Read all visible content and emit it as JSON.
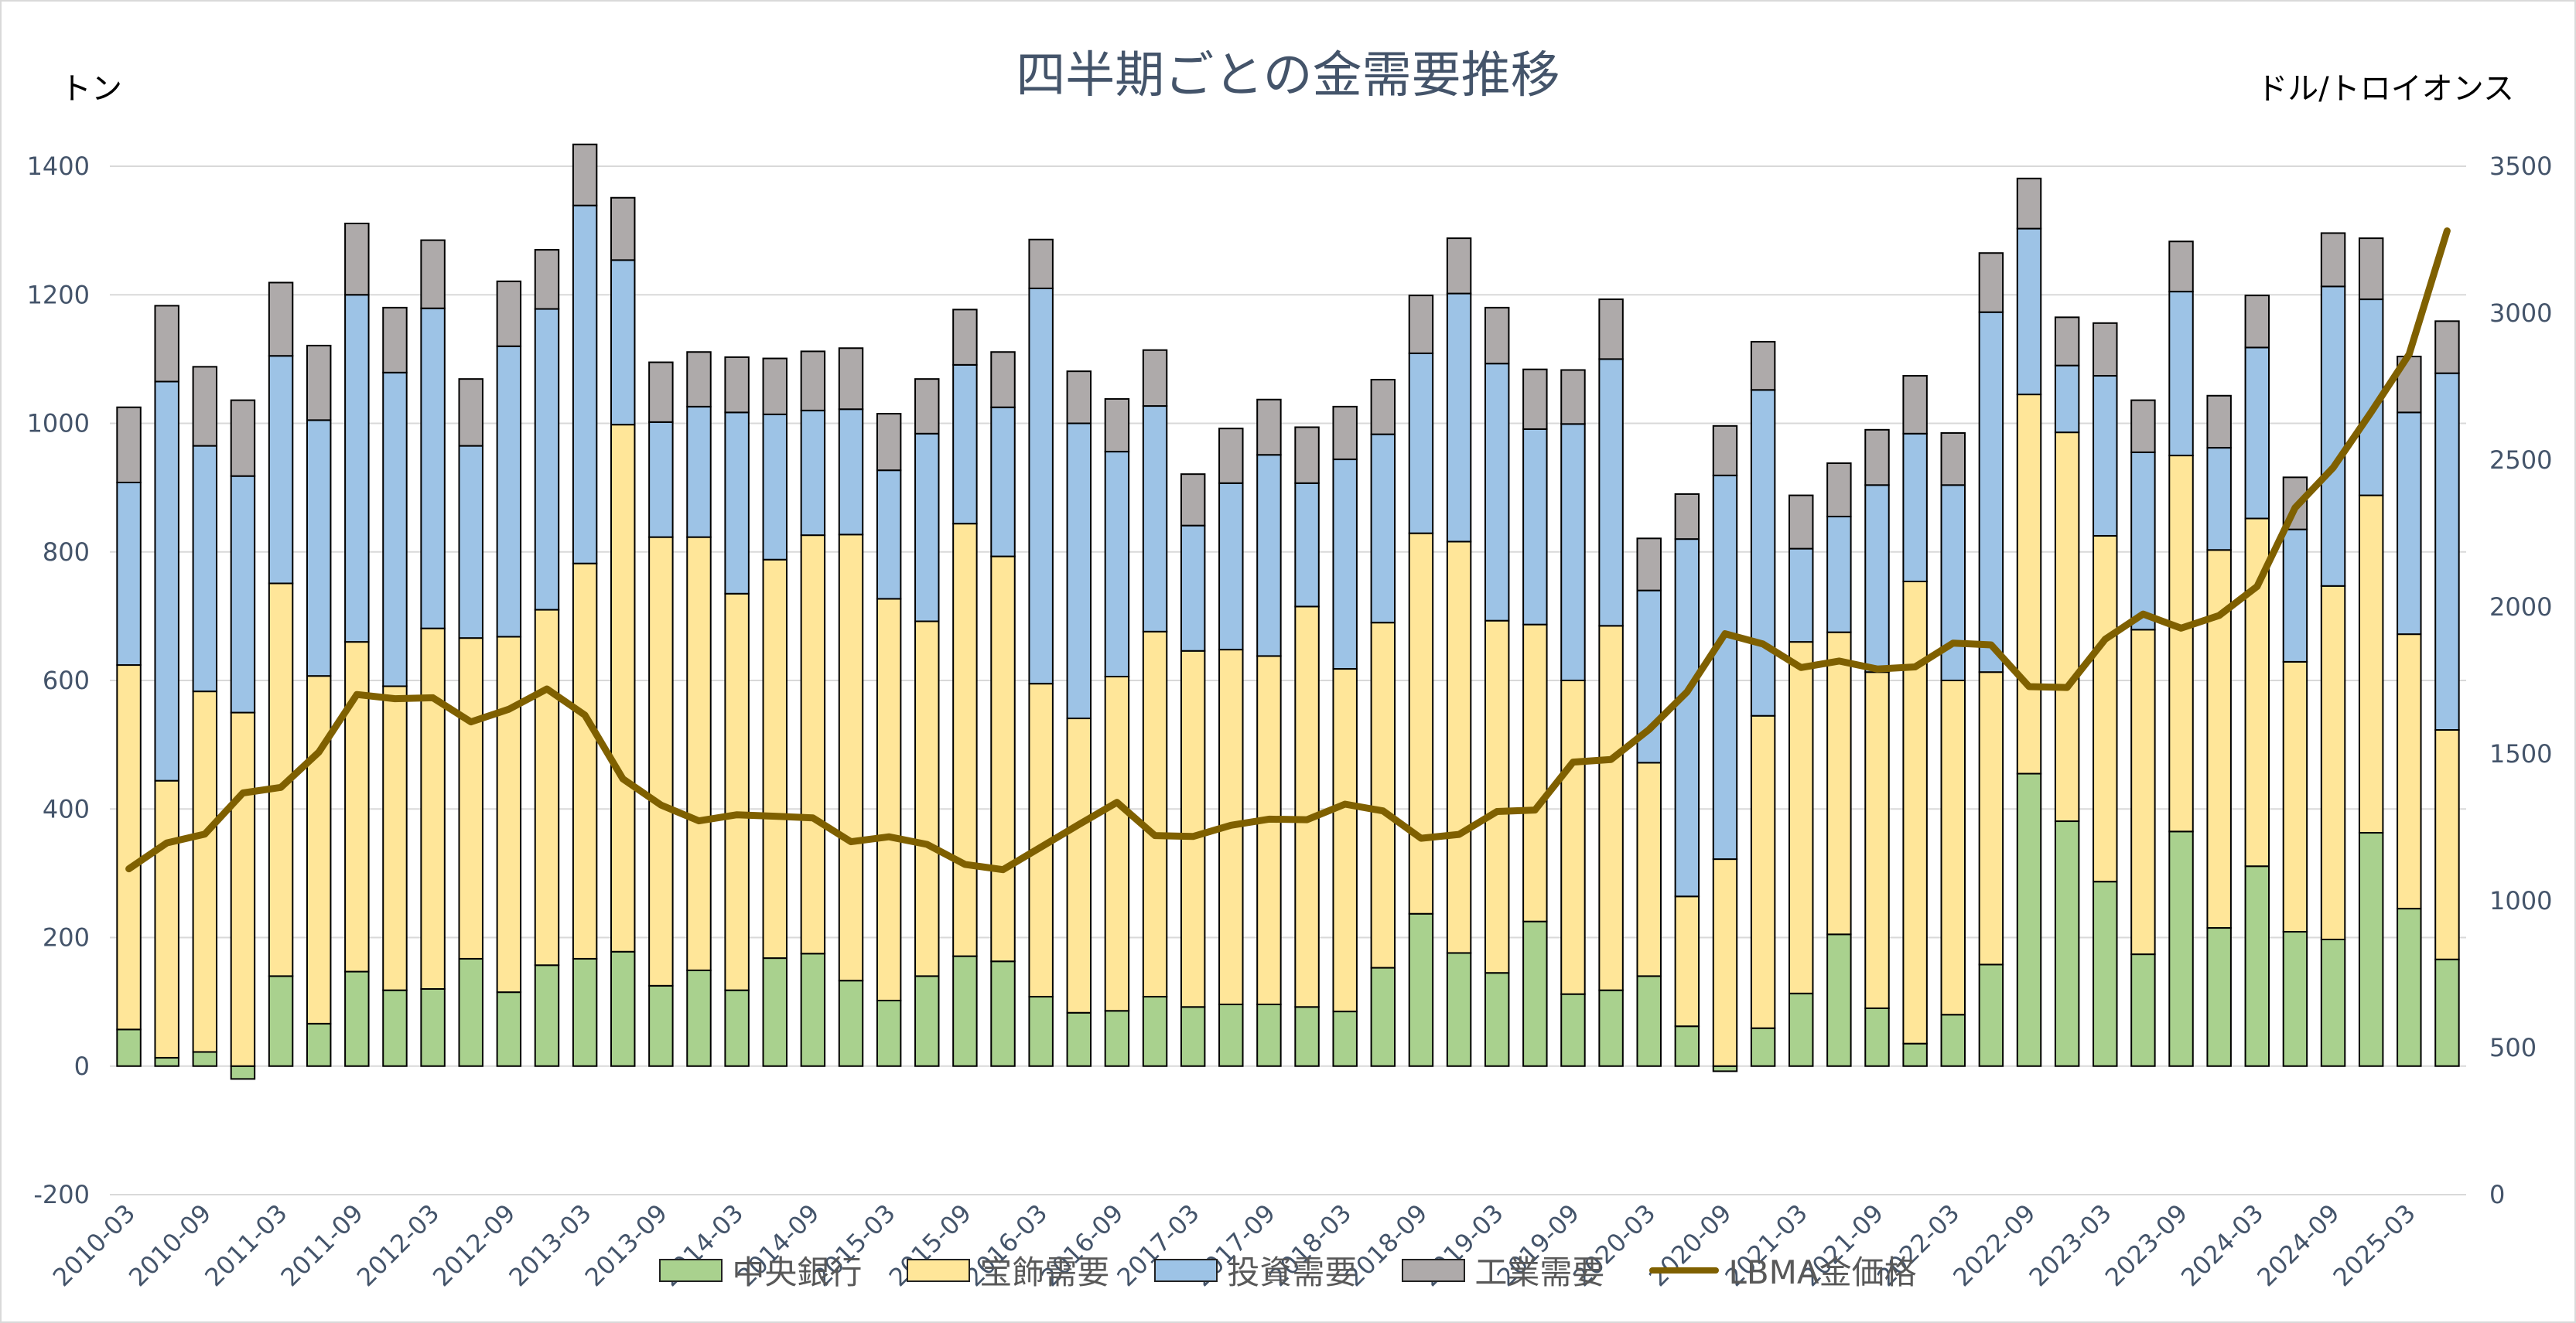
{
  "header": {
    "title": "四半期ごとの金需要推移",
    "left_unit": "トン",
    "right_unit": "ドル/トロイオンス"
  },
  "colors": {
    "central_bank": "#a9d18e",
    "jewelry": "#ffe699",
    "investment": "#9dc3e6",
    "industrial": "#aeaaaa",
    "gold_price": "#7f6000",
    "outline": "#000000",
    "grid": "#d9d9d9",
    "axis_text": "#44546a"
  },
  "chart_data": {
    "type": "bar",
    "stacked": true,
    "title": "四半期ごとの金需要推移",
    "ylabel": "トン",
    "y2label": "ドル/トロイオンス",
    "ylim": [
      -200,
      1400
    ],
    "yticks": [
      "-200",
      "0",
      "200",
      "400",
      "600",
      "800",
      "1000",
      "1200",
      "1400"
    ],
    "y2lim": [
      0,
      3500
    ],
    "y2ticks": [
      "0",
      "500",
      "1000",
      "1500",
      "2000",
      "2500",
      "3000",
      "3500"
    ],
    "grid": true,
    "legend_position": "bottom",
    "categories": [
      "2010-03",
      "2010-06",
      "2010-09",
      "2010-12",
      "2011-03",
      "2011-06",
      "2011-09",
      "2011-12",
      "2012-03",
      "2012-06",
      "2012-09",
      "2012-12",
      "2013-03",
      "2013-06",
      "2013-09",
      "2013-12",
      "2014-03",
      "2014-06",
      "2014-09",
      "2014-12",
      "2015-03",
      "2015-06",
      "2015-09",
      "2015-12",
      "2016-03",
      "2016-06",
      "2016-09",
      "2016-12",
      "2017-03",
      "2017-06",
      "2017-09",
      "2017-12",
      "2018-03",
      "2018-06",
      "2018-09",
      "2018-12",
      "2019-03",
      "2019-06",
      "2019-09",
      "2019-12",
      "2020-03",
      "2020-06",
      "2020-09",
      "2020-12",
      "2021-03",
      "2021-06",
      "2021-09",
      "2021-12",
      "2022-03",
      "2022-06",
      "2022-09",
      "2022-12",
      "2023-03",
      "2023-06",
      "2023-09",
      "2023-12",
      "2024-03",
      "2024-06",
      "2024-09",
      "2024-12",
      "2025-03",
      "2025-06"
    ],
    "series": [
      {
        "name": "中央銀行",
        "values": [
          57,
          13,
          22,
          -20,
          140,
          66,
          147,
          118,
          120,
          167,
          115,
          157,
          167,
          178,
          125,
          149,
          118,
          168,
          175,
          133,
          102,
          140,
          171,
          163,
          108,
          83,
          86,
          108,
          92,
          96,
          96,
          92,
          85,
          153,
          237,
          176,
          145,
          225,
          112,
          118,
          140,
          62,
          -8,
          59,
          113,
          205,
          90,
          35,
          80,
          158,
          455,
          381,
          287,
          174,
          365,
          215,
          311,
          209,
          197,
          363,
          245,
          166
        ]
      },
      {
        "name": "宝飾需要",
        "values": [
          567,
          431,
          561,
          550,
          611,
          541,
          513,
          473,
          561,
          499,
          553,
          553,
          615,
          820,
          698,
          674,
          617,
          620,
          651,
          694,
          625,
          552,
          673,
          630,
          487,
          458,
          520,
          568,
          554,
          552,
          542,
          623,
          533,
          537,
          592,
          640,
          548,
          462,
          488,
          567,
          332,
          202,
          322,
          486,
          547,
          470,
          523,
          719,
          520,
          455,
          590,
          605,
          538,
          505,
          585,
          588,
          541,
          420,
          550,
          525,
          427,
          357
        ]
      },
      {
        "name": "投資需要",
        "values": [
          284,
          621,
          382,
          368,
          354,
          398,
          540,
          488,
          498,
          299,
          452,
          468,
          557,
          256,
          179,
          203,
          282,
          226,
          194,
          195,
          200,
          292,
          247,
          232,
          615,
          459,
          350,
          351,
          195,
          259,
          313,
          192,
          326,
          293,
          280,
          386,
          400,
          304,
          399,
          415,
          268,
          556,
          597,
          507,
          145,
          180,
          291,
          230,
          304,
          560,
          258,
          104,
          249,
          276,
          255,
          159,
          266,
          206,
          466,
          305,
          345,
          555
        ]
      },
      {
        "name": "工業需要",
        "values": [
          117,
          118,
          123,
          118,
          114,
          116,
          111,
          101,
          106,
          104,
          101,
          92,
          95,
          97,
          93,
          85,
          86,
          87,
          92,
          95,
          88,
          85,
          86,
          86,
          76,
          81,
          82,
          87,
          80,
          85,
          86,
          87,
          82,
          85,
          90,
          86,
          87,
          93,
          84,
          93,
          81,
          70,
          77,
          75,
          83,
          83,
          86,
          90,
          81,
          92,
          78,
          75,
          82,
          81,
          78,
          81,
          81,
          81,
          83,
          95,
          87,
          81
        ]
      },
      {
        "name": "LBMA金価格",
        "values": [
          1109,
          1197,
          1227,
          1367,
          1386,
          1506,
          1702,
          1688,
          1691,
          1609,
          1652,
          1721,
          1632,
          1415,
          1326,
          1272,
          1293,
          1288,
          1282,
          1201,
          1218,
          1192,
          1124,
          1106,
          1183,
          1260,
          1335,
          1222,
          1219,
          1257,
          1278,
          1276,
          1329,
          1306,
          1213,
          1226,
          1304,
          1309,
          1472,
          1481,
          1583,
          1711,
          1909,
          1874,
          1794,
          1816,
          1789,
          1796,
          1877,
          1871,
          1729,
          1726,
          1890,
          1976,
          1928,
          1971,
          2070,
          2338,
          2474,
          2663,
          2860,
          3280
        ]
      }
    ]
  },
  "legend": {
    "items": [
      {
        "label": "中央銀行"
      },
      {
        "label": "宝飾需要"
      },
      {
        "label": "投資需要"
      },
      {
        "label": "工業需要"
      },
      {
        "label": "LBMA金価格"
      }
    ]
  }
}
